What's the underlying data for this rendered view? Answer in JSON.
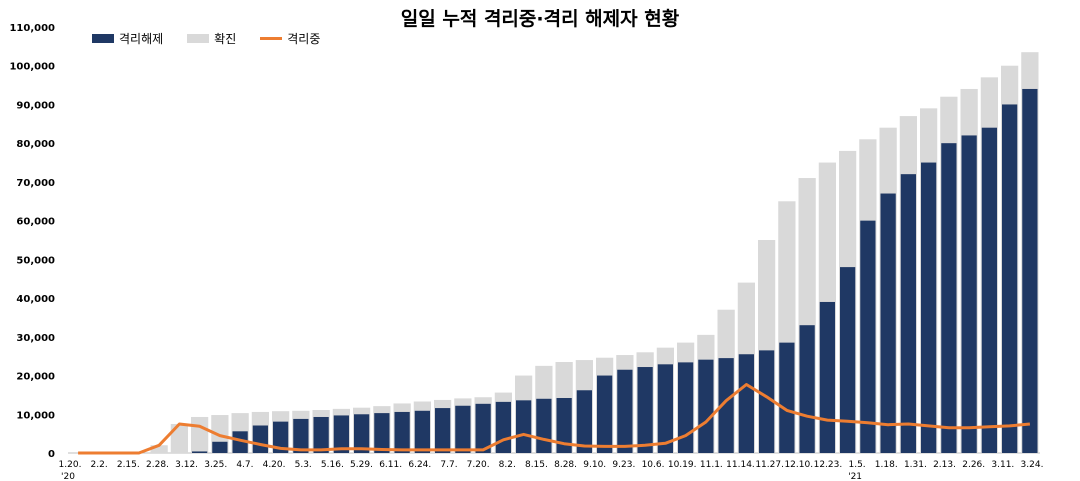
{
  "chart_data": {
    "type": "bar",
    "title": "일일 누적 격리중·격리 해제자 현황",
    "xlabel": "",
    "ylabel": "",
    "ylim": [
      0,
      110000
    ],
    "y_ticks": [
      0,
      10000,
      20000,
      30000,
      40000,
      50000,
      60000,
      70000,
      80000,
      90000,
      100000,
      110000
    ],
    "y_tick_labels": [
      "0",
      "10,000",
      "20,000",
      "30,000",
      "40,000",
      "50,000",
      "60,000",
      "70,000",
      "80,000",
      "90,000",
      "100,000",
      "110,000"
    ],
    "x_tick_labels": [
      "1.20.",
      "2.2.",
      "2.15.",
      "2.28.",
      "3.12.",
      "3.25.",
      "4.7.",
      "4.20.",
      "5.3.",
      "5.16.",
      "5.29.",
      "6.11.",
      "6.24.",
      "7.7.",
      "7.20.",
      "8.2.",
      "8.15.",
      "8.28.",
      "9.10.",
      "9.23.",
      "10.6.",
      "10.19.",
      "11.1.",
      "11.14.",
      "11.27.",
      "12.10.",
      "12.23.",
      "1.5.",
      "1.18.",
      "1.31.",
      "2.13.",
      "2.26.",
      "3.11.",
      "3.24."
    ],
    "year_labels": [
      {
        "label": "'20",
        "at": "1.20."
      },
      {
        "label": "'21",
        "at": "1.5."
      }
    ],
    "legend_position": "top-left",
    "colors": {
      "released": "#1f3864",
      "confirmed": "#d9d9d9",
      "isolated": "#ed7d31"
    },
    "series": [
      {
        "name": "격리해제",
        "kind": "bar",
        "values": [
          0,
          0,
          0,
          0,
          0,
          0,
          400,
          2900,
          5600,
          7100,
          8100,
          8800,
          9300,
          9700,
          10000,
          10300,
          10600,
          10900,
          11600,
          12200,
          12700,
          13200,
          13600,
          14000,
          14200,
          16200,
          20000,
          21500,
          22200,
          22900,
          23400,
          24100,
          24500,
          25500,
          26500,
          28500,
          33000,
          39000,
          48000,
          60000,
          67000,
          72000,
          75000,
          80000,
          82000,
          84000,
          90000,
          94000
        ]
      },
      {
        "name": "확진",
        "kind": "bar",
        "values": [
          0,
          0,
          0,
          0,
          2000,
          7500,
          9300,
          9800,
          10300,
          10600,
          10800,
          10900,
          11100,
          11400,
          11700,
          12100,
          12800,
          13300,
          13700,
          14100,
          14400,
          15600,
          20000,
          22500,
          23500,
          24000,
          24600,
          25300,
          26000,
          27200,
          28500,
          30500,
          37000,
          44000,
          55000,
          65000,
          71000,
          75000,
          78000,
          81000,
          84000,
          87000,
          89000,
          92000,
          94000,
          97000,
          100000,
          103500
        ]
      },
      {
        "name": "격리중",
        "kind": "line",
        "values": [
          0,
          0,
          0,
          0,
          2000,
          7500,
          6900,
          4500,
          3300,
          2200,
          1200,
          800,
          800,
          1100,
          1100,
          900,
          800,
          800,
          800,
          800,
          800,
          3400,
          4800,
          3500,
          2400,
          1800,
          1700,
          1700,
          2000,
          2500,
          4500,
          8000,
          13500,
          17700,
          14500,
          11000,
          9500,
          8500,
          8200,
          7800,
          7300,
          7500,
          7000,
          6500,
          6500,
          6800,
          7000,
          7500
        ]
      }
    ]
  }
}
